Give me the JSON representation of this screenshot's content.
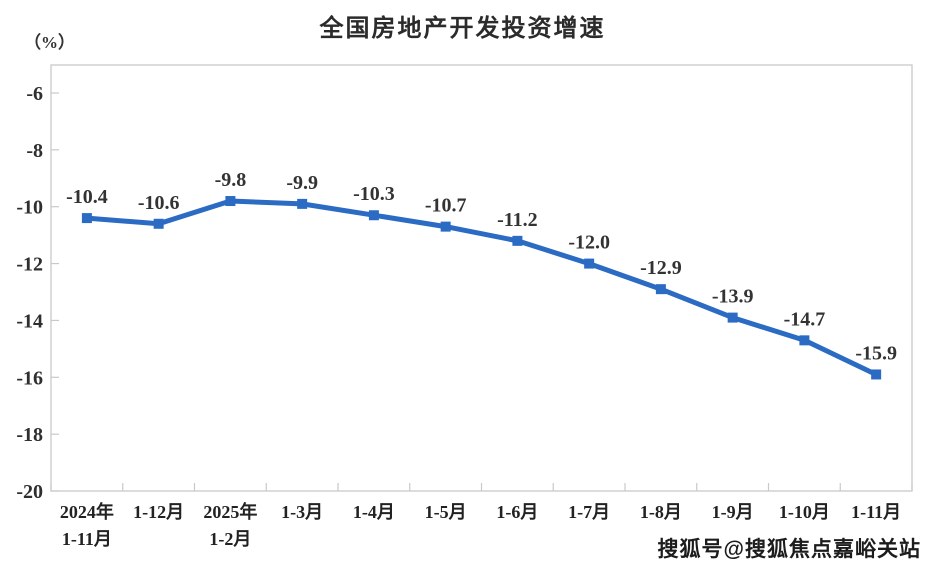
{
  "page": {
    "unit_label": "（%）",
    "watermark": "搜狐号@搜狐焦点嘉峪关站"
  },
  "chart_data": {
    "type": "line",
    "title": "全国房地产开发投资增速",
    "ylabel": "（%）",
    "categories": [
      [
        "2024年",
        "1-11月"
      ],
      [
        "1-12月"
      ],
      [
        "2025年",
        "1-2月"
      ],
      [
        "1-3月"
      ],
      [
        "1-4月"
      ],
      [
        "1-5月"
      ],
      [
        "1-6月"
      ],
      [
        "1-7月"
      ],
      [
        "1-8月"
      ],
      [
        "1-9月"
      ],
      [
        "1-10月"
      ],
      [
        "1-11月"
      ]
    ],
    "series": [
      {
        "name": "全国房地产开发投资增速",
        "values": [
          -10.4,
          -10.6,
          -9.8,
          -9.9,
          -10.3,
          -10.7,
          -11.2,
          -12.0,
          -12.9,
          -13.9,
          -14.7,
          -15.9
        ],
        "labels": [
          "-10.4",
          "-10.6",
          "-9.8",
          "-9.9",
          "-10.3",
          "-10.7",
          "-11.2",
          "-12.0",
          "-12.9",
          "-13.9",
          "-14.7",
          "-15.9"
        ]
      }
    ],
    "yticks": [
      -6,
      -8,
      -10,
      -12,
      -14,
      -16,
      -18,
      -20
    ],
    "ylim": [
      -20,
      -5
    ],
    "grid": false,
    "legend": "none",
    "line_color": "#2B6BC3",
    "marker": "square",
    "axis_color": "#c9c9c9",
    "label_color": "#333333",
    "tick_label_color": "#2f2f2f"
  }
}
